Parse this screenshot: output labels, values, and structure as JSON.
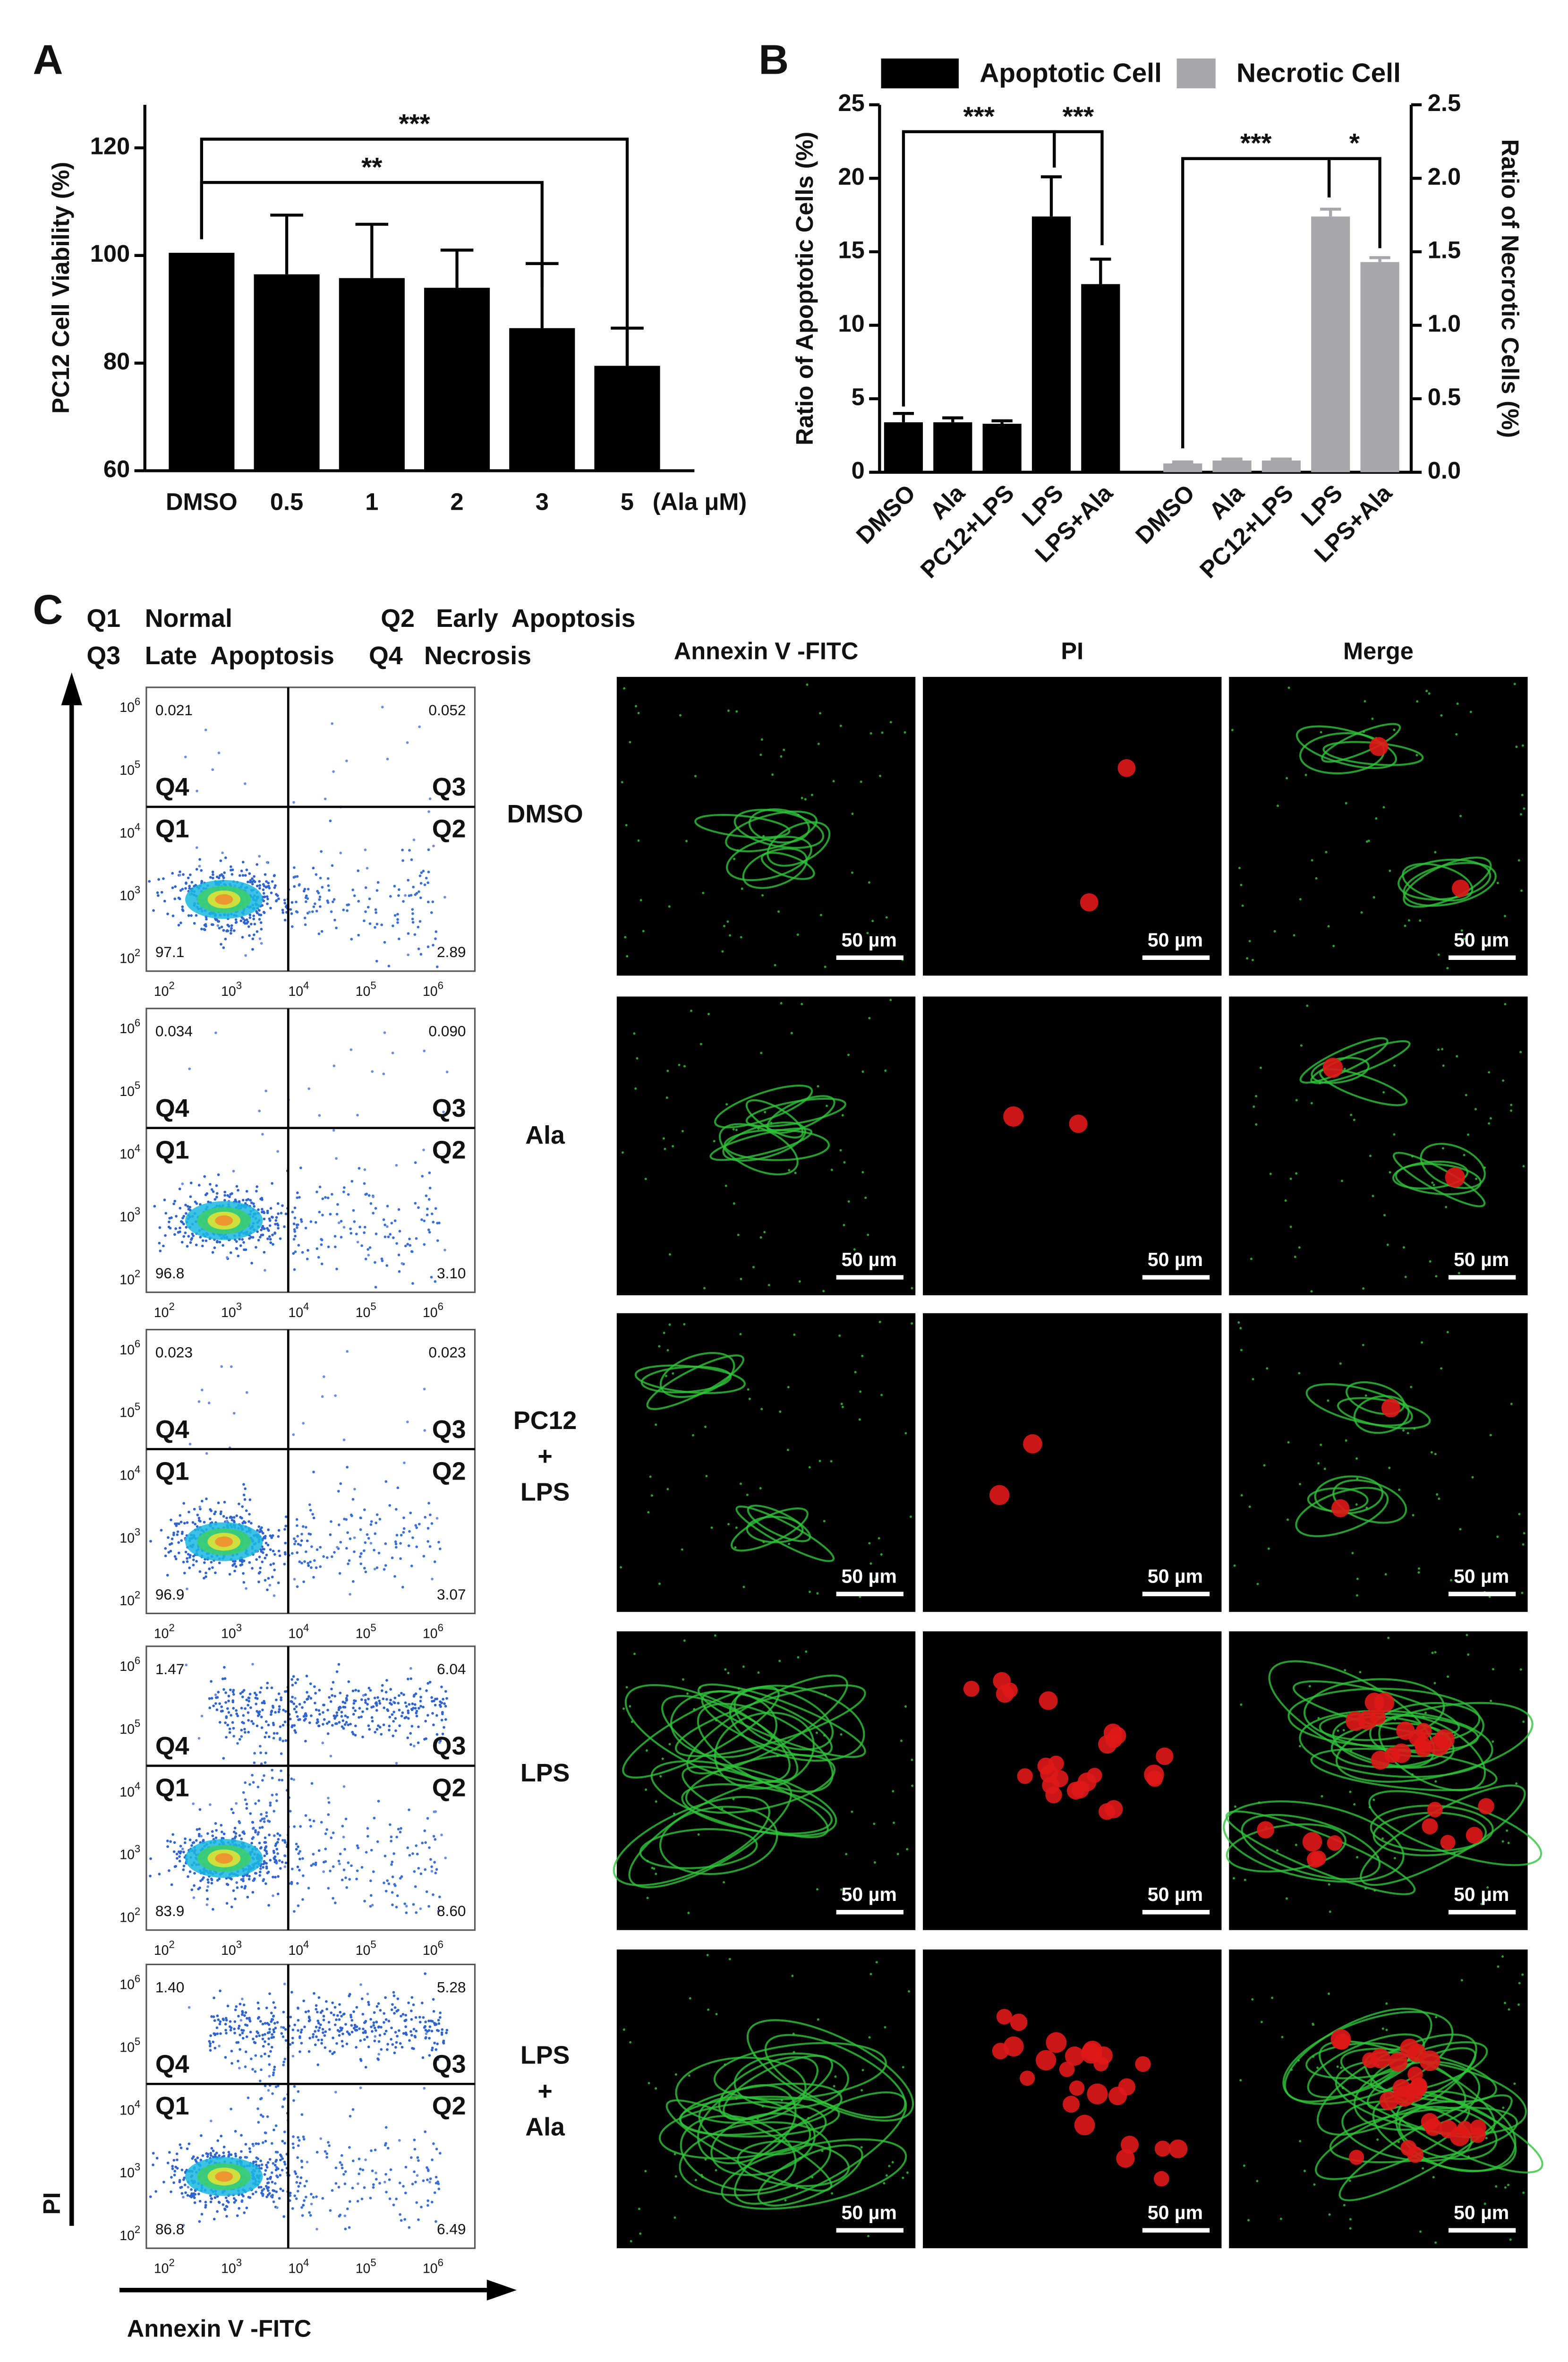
{
  "chart_data": [
    {
      "type": "bar",
      "panel_label": "A",
      "ylabel": "PC12 Cell Viability (%)",
      "categories": [
        "DMSO",
        "0.5",
        "1",
        "2",
        "3",
        "5"
      ],
      "x_unit": "(Ala μM)",
      "values": [
        100.5,
        96.5,
        95.8,
        94,
        86.5,
        79.5
      ],
      "errors": [
        0,
        11,
        10,
        7,
        12,
        7
      ],
      "color": "#000000",
      "ylim": [
        60,
        128
      ],
      "yticks": [
        60,
        80,
        100,
        120
      ],
      "annotations": [
        "**",
        "***"
      ]
    },
    {
      "type": "bar",
      "panel_label": "B",
      "ylabel": "Ratio of Apoptotic Cells (%)",
      "y2label": "Ratio of Necrotic Cells (%)",
      "categories": [
        "DMSO",
        "Ala",
        "PC12+LPS",
        "LPS",
        "LPS+Ala",
        "DMSO",
        "Ala",
        "PC12+LPS",
        "LPS",
        "LPS+Ala"
      ],
      "series": [
        {
          "name": "Apoptotic Cell",
          "color": "#000000",
          "values": [
            3.4,
            3.4,
            3.3,
            17.4,
            12.8,
            null,
            null,
            null,
            null,
            null
          ],
          "errors": [
            0.6,
            0.3,
            0.2,
            2.7,
            1.7,
            null,
            null,
            null,
            null,
            null
          ]
        },
        {
          "name": "Necrotic Cell",
          "color": "#a6a6ab",
          "axis": "y2",
          "values": [
            null,
            null,
            null,
            null,
            null,
            0.06,
            0.08,
            0.08,
            1.74,
            1.43
          ],
          "errors": [
            null,
            null,
            null,
            null,
            null,
            0.01,
            0.01,
            0.01,
            0.05,
            0.03
          ]
        }
      ],
      "ylim": [
        0,
        25
      ],
      "yticks": [
        0,
        5,
        10,
        15,
        20,
        25
      ],
      "y2lim": [
        0,
        2.5
      ],
      "y2ticks": [
        {
          "value": 0,
          "label": "0.0"
        },
        0.5,
        {
          "value": 1,
          "label": "1.0"
        },
        1.5,
        {
          "value": 2,
          "label": "2.0"
        },
        2.5
      ],
      "legend": "top",
      "annotations": [
        "***",
        "***",
        "***",
        "*"
      ]
    }
  ],
  "panel_c": {
    "panel_label": "C",
    "legend": [
      {
        "id": "Q1",
        "name": "Normal"
      },
      {
        "id": "Q2",
        "name": "Early  Apoptosis"
      },
      {
        "id": "Q3",
        "name": "Late  Apoptosis"
      },
      {
        "id": "Q4",
        "name": "Necrosis"
      }
    ],
    "y_axis_label": "PI",
    "x_axis_label": "Annexin V -FITC",
    "columns": [
      "Annexin V -FITC",
      "PI",
      "Merge"
    ],
    "flow_tick_base": "10",
    "flow_y_exponents": [
      "6",
      "5",
      "4",
      "3",
      "2"
    ],
    "flow_x_exponents": [
      "2",
      "3",
      "4",
      "5",
      "6"
    ],
    "scale_bar": "50 µm",
    "rows": [
      {
        "label": [
          "DMSO"
        ],
        "q4": "0.021",
        "q3": "0.052",
        "q1": "97.1",
        "q2": "2.89"
      },
      {
        "label": [
          "Ala"
        ],
        "q4": "0.034",
        "q3": "0.090",
        "q1": "96.8",
        "q2": "3.10"
      },
      {
        "label": [
          "PC12",
          "+",
          "LPS"
        ],
        "q4": "0.023",
        "q3": "0.023",
        "q1": "96.9",
        "q2": "3.07"
      },
      {
        "label": [
          "LPS"
        ],
        "q4": "1.47",
        "q3": "6.04",
        "q1": "83.9",
        "q2": "8.60"
      },
      {
        "label": [
          "LPS",
          "+",
          "Ala"
        ],
        "q4": "1.40",
        "q3": "5.28",
        "q1": "86.8",
        "q2": "6.49"
      }
    ]
  }
}
